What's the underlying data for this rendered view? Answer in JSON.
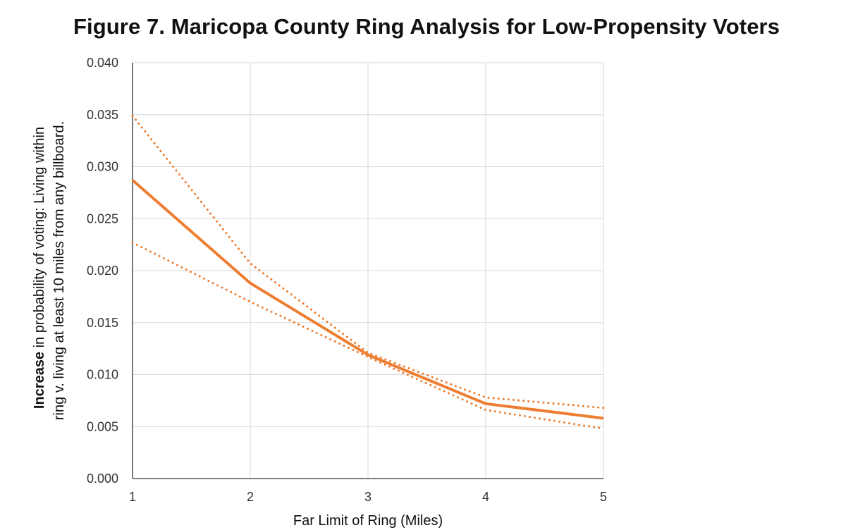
{
  "chart_data": {
    "type": "line",
    "title": "Figure 7. Maricopa County Ring Analysis for Low-Propensity Voters",
    "xlabel": "Far Limit of Ring (Miles)",
    "ylabel_line1_bold": "Increase",
    "ylabel_line1_rest": " in probability of voting: Living within",
    "ylabel_line2": "ring v. living at least 10 miles from any billboard.",
    "x": [
      1,
      2,
      3,
      4,
      5
    ],
    "xlim": [
      1,
      5
    ],
    "ylim": [
      0,
      0.04
    ],
    "x_ticks": [
      "1",
      "2",
      "3",
      "4",
      "5"
    ],
    "y_ticks": [
      "0.000",
      "0.005",
      "0.010",
      "0.015",
      "0.020",
      "0.025",
      "0.030",
      "0.035",
      "0.040"
    ],
    "grid": true,
    "legend": "none",
    "color": "#ED7D31",
    "series": [
      {
        "style": "solid",
        "values": [
          0.0287,
          0.0188,
          0.0119,
          0.0072,
          0.0058
        ]
      },
      {
        "style": "dotted",
        "values": [
          0.0349,
          0.0207,
          0.0121,
          0.0078,
          0.0068
        ]
      },
      {
        "style": "dotted",
        "values": [
          0.0227,
          0.017,
          0.0117,
          0.0066,
          0.0048
        ]
      }
    ]
  }
}
